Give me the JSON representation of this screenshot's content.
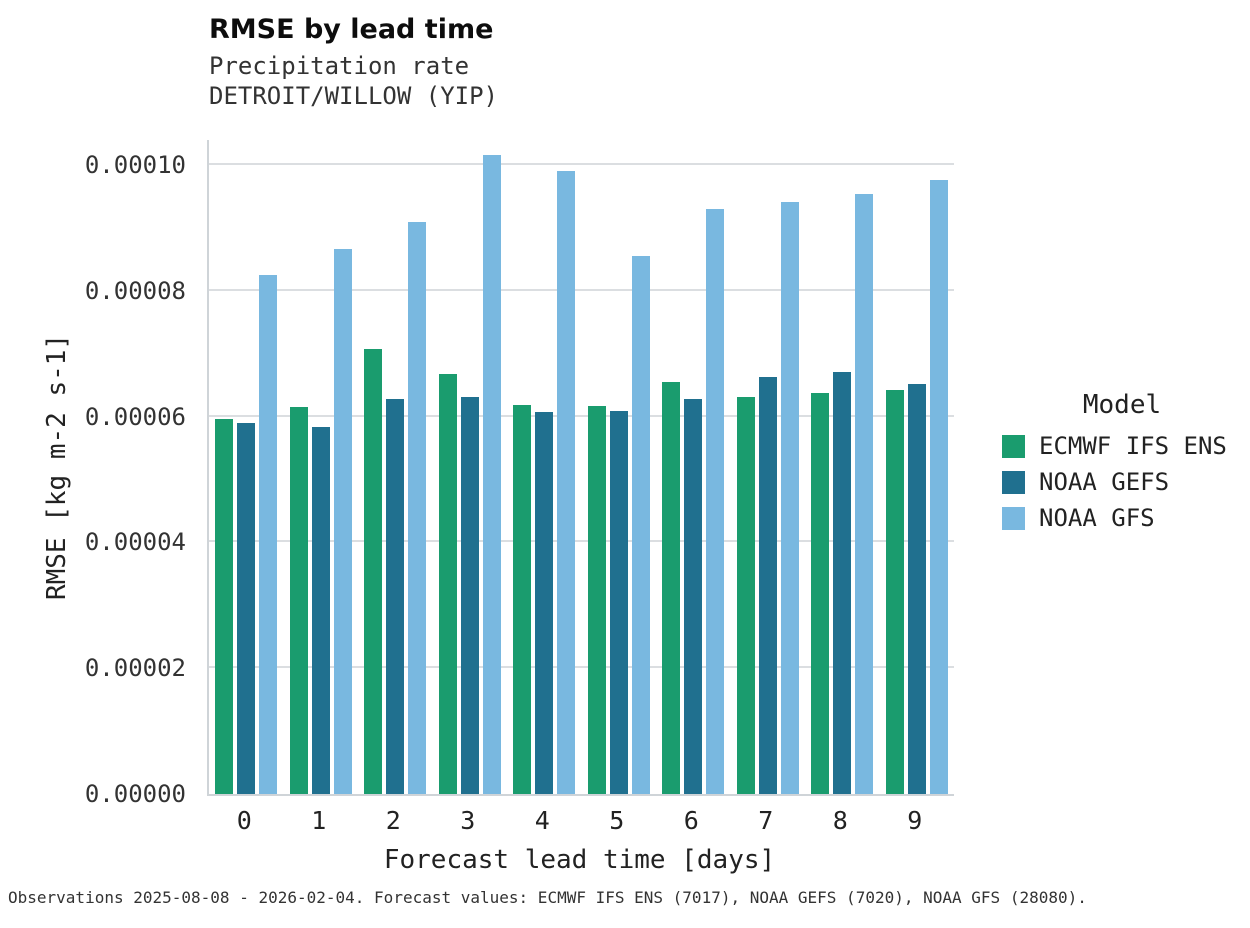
{
  "header": {
    "title": "RMSE by lead time",
    "subtitle1": "Precipitation rate",
    "subtitle2": "DETROIT/WILLOW (YIP)"
  },
  "legend": {
    "title": "Model",
    "entries": [
      {
        "label": "ECMWF IFS ENS",
        "color": "#1a9c6e"
      },
      {
        "label": "NOAA GEFS",
        "color": "#20708f"
      },
      {
        "label": "NOAA GFS",
        "color": "#79b8e0"
      }
    ]
  },
  "footer": {
    "note": "Observations 2025-08-08 - 2026-02-04. Forecast values: ECMWF IFS ENS (7017), NOAA GEFS (7020), NOAA GFS (28080)."
  },
  "chart_data": {
    "type": "bar",
    "title": "RMSE by lead time",
    "subtitle": [
      "Precipitation rate",
      "DETROIT/WILLOW (YIP)"
    ],
    "xlabel": "Forecast lead time [days]",
    "ylabel": "RMSE [kg m-2 s-1]",
    "categories": [
      "0",
      "1",
      "2",
      "3",
      "4",
      "5",
      "6",
      "7",
      "8",
      "9"
    ],
    "ylim": [
      0,
      0.000104
    ],
    "yticks": [
      0,
      2e-05,
      4e-05,
      6e-05,
      8e-05,
      0.0001
    ],
    "ytick_labels": [
      "0.00000",
      "0.00002",
      "0.00004",
      "0.00006",
      "0.00008",
      "0.00010"
    ],
    "grid": true,
    "legend_position": "right",
    "legend_title": "Model",
    "series": [
      {
        "name": "ECMWF IFS ENS",
        "color": "#1a9c6e",
        "values": [
          5.97e-05,
          6.15e-05,
          7.07e-05,
          6.68e-05,
          6.18e-05,
          6.17e-05,
          6.55e-05,
          6.31e-05,
          6.38e-05,
          6.42e-05
        ]
      },
      {
        "name": "NOAA GEFS",
        "color": "#20708f",
        "values": [
          5.9e-05,
          5.83e-05,
          6.28e-05,
          6.31e-05,
          6.07e-05,
          6.09e-05,
          6.28e-05,
          6.63e-05,
          6.71e-05,
          6.52e-05
        ]
      },
      {
        "name": "NOAA GFS",
        "color": "#79b8e0",
        "values": [
          8.25e-05,
          8.66e-05,
          9.09e-05,
          0.0001016,
          9.9e-05,
          8.56e-05,
          9.31e-05,
          9.42e-05,
          9.54e-05,
          9.77e-05
        ]
      }
    ]
  }
}
